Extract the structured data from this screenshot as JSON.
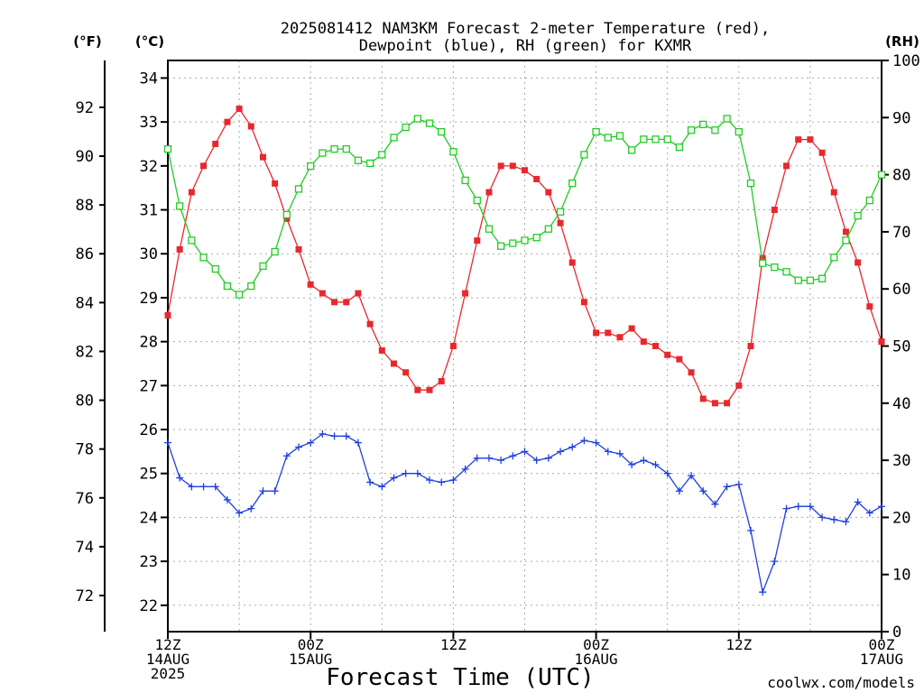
{
  "chart_data": {
    "type": "line",
    "title_line1": "2025081412 NAM3KM Forecast 2-meter Temperature (red),",
    "title_line2": "Dewpoint (blue), RH (green) for KXMR",
    "xlabel": "Forecast Time (UTC)",
    "watermark": "coolwx.com/models",
    "unit_labels": {
      "f": "(°F)",
      "c": "(°C)",
      "rh": "(RH)"
    },
    "x_ticks": [
      {
        "hour": 0,
        "lines": [
          "12Z",
          "14AUG",
          "2025"
        ]
      },
      {
        "hour": 12,
        "lines": [
          "00Z",
          "15AUG"
        ]
      },
      {
        "hour": 24,
        "lines": [
          "12Z"
        ]
      },
      {
        "hour": 36,
        "lines": [
          "00Z",
          "16AUG"
        ]
      },
      {
        "hour": 48,
        "lines": [
          "12Z"
        ]
      },
      {
        "hour": 60,
        "lines": [
          "00Z",
          "17AUG"
        ]
      }
    ],
    "xlim": [
      0,
      60
    ],
    "c_axis": {
      "ylim": [
        21.4,
        34.4
      ],
      "ticks": [
        22,
        23,
        24,
        25,
        26,
        27,
        28,
        29,
        30,
        31,
        32,
        33,
        34
      ]
    },
    "f_axis": {
      "ticks": [
        72,
        74,
        76,
        78,
        80,
        82,
        84,
        86,
        88,
        90,
        92
      ]
    },
    "rh_axis": {
      "ylim": [
        0,
        100
      ],
      "ticks": [
        0,
        10,
        20,
        30,
        40,
        50,
        60,
        70,
        80,
        90,
        100
      ]
    },
    "grid": true,
    "series": [
      {
        "name": "Temperature",
        "axis": "c",
        "color": "#e8282d",
        "marker": "filled-square",
        "values": [
          28.6,
          30.1,
          31.4,
          32.0,
          32.5,
          33.0,
          33.3,
          32.9,
          32.2,
          31.6,
          30.8,
          30.1,
          29.3,
          29.1,
          28.9,
          28.9,
          29.1,
          28.4,
          27.8,
          27.5,
          27.3,
          26.9,
          26.9,
          27.1,
          27.9,
          29.1,
          30.3,
          31.4,
          32.0,
          32.0,
          31.9,
          31.7,
          31.4,
          30.7,
          29.8,
          28.9,
          28.2,
          28.2,
          28.1,
          28.3,
          28.0,
          27.9,
          27.7,
          27.6,
          27.3,
          26.7,
          26.6,
          26.6,
          27.0,
          27.9,
          29.9,
          31.0,
          32.0,
          32.6,
          32.6,
          32.3,
          31.4,
          30.5,
          29.8,
          28.8,
          28.0
        ]
      },
      {
        "name": "Dewpoint",
        "axis": "c",
        "color": "#1f3fe0",
        "marker": "plus",
        "values": [
          25.7,
          24.9,
          24.7,
          24.7,
          24.7,
          24.4,
          24.1,
          24.2,
          24.6,
          24.6,
          25.4,
          25.6,
          25.7,
          25.9,
          25.85,
          25.85,
          25.7,
          24.8,
          24.7,
          24.9,
          25.0,
          25.0,
          24.85,
          24.8,
          24.85,
          25.1,
          25.35,
          25.35,
          25.3,
          25.4,
          25.5,
          25.3,
          25.35,
          25.5,
          25.6,
          25.75,
          25.7,
          25.5,
          25.45,
          25.2,
          25.3,
          25.2,
          25.0,
          24.6,
          24.95,
          24.6,
          24.3,
          24.7,
          24.75,
          23.7,
          22.3,
          23.0,
          24.2,
          24.25,
          24.25,
          24.0,
          23.95,
          23.9,
          24.35,
          24.1,
          24.25
        ]
      },
      {
        "name": "RH",
        "axis": "rh",
        "color": "#22cc22",
        "marker": "open-square",
        "values": [
          84.5,
          74.5,
          68.5,
          65.5,
          63.5,
          60.5,
          59.0,
          60.5,
          64.0,
          66.5,
          73.0,
          77.5,
          81.5,
          83.8,
          84.5,
          84.5,
          82.5,
          82.0,
          83.5,
          86.5,
          88.3,
          89.8,
          89.0,
          87.5,
          84.0,
          79.0,
          75.5,
          70.5,
          67.5,
          68.0,
          68.5,
          69.0,
          70.5,
          73.5,
          78.5,
          83.5,
          87.5,
          86.5,
          86.8,
          84.3,
          86.2,
          86.2,
          86.2,
          84.8,
          87.8,
          88.8,
          87.8,
          89.8,
          87.5,
          78.5,
          64.5,
          63.8,
          63.0,
          61.5,
          61.5,
          61.8,
          65.5,
          68.5,
          72.8,
          75.5,
          80.0
        ]
      }
    ]
  },
  "colors": {
    "temperature": "#e8282d",
    "dewpoint": "#1f3fe0",
    "rh": "#22cc22",
    "watermark": "#e0303a",
    "grid": "#aaaaaa"
  }
}
